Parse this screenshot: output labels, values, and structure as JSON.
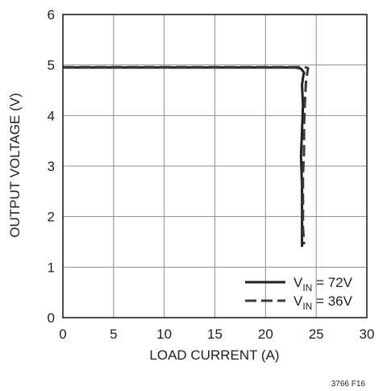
{
  "chart_data": {
    "type": "line",
    "title": "",
    "xlabel": "LOAD CURRENT (A)",
    "ylabel": "OUTPUT VOLTAGE (V)",
    "xlim": [
      0,
      30
    ],
    "ylim": [
      0,
      6
    ],
    "xticks": [
      "0",
      "5",
      "10",
      "15",
      "20",
      "25",
      "30"
    ],
    "yticks": [
      "0",
      "1",
      "2",
      "3",
      "4",
      "5",
      "6"
    ],
    "grid": true,
    "legend_position": "bottom-right",
    "series": [
      {
        "name_main": "V",
        "name_sub": "IN",
        "name_rest": " = 72V",
        "style": "solid",
        "color": "#231f20",
        "points": [
          [
            0,
            4.95
          ],
          [
            23.0,
            4.95
          ],
          [
            23.5,
            4.93
          ],
          [
            23.8,
            4.85
          ],
          [
            23.7,
            4.75
          ],
          [
            23.6,
            4.6
          ],
          [
            23.7,
            4.2
          ],
          [
            23.6,
            3.7
          ],
          [
            23.5,
            3.2
          ],
          [
            23.6,
            2.6
          ],
          [
            23.6,
            2.0
          ],
          [
            23.6,
            1.4
          ]
        ]
      },
      {
        "name_main": "V",
        "name_sub": "IN",
        "name_rest": " = 36V",
        "style": "dashed",
        "color": "#3a3a3a",
        "points": [
          [
            0,
            4.96
          ],
          [
            23.8,
            4.96
          ],
          [
            24.2,
            4.94
          ],
          [
            24.0,
            4.7
          ],
          [
            23.9,
            4.3
          ],
          [
            23.8,
            3.8
          ],
          [
            23.8,
            3.3
          ],
          [
            23.7,
            2.8
          ],
          [
            23.7,
            2.3
          ],
          [
            23.7,
            1.8
          ],
          [
            23.8,
            1.45
          ]
        ]
      }
    ]
  },
  "figure_id": "3766 F16"
}
